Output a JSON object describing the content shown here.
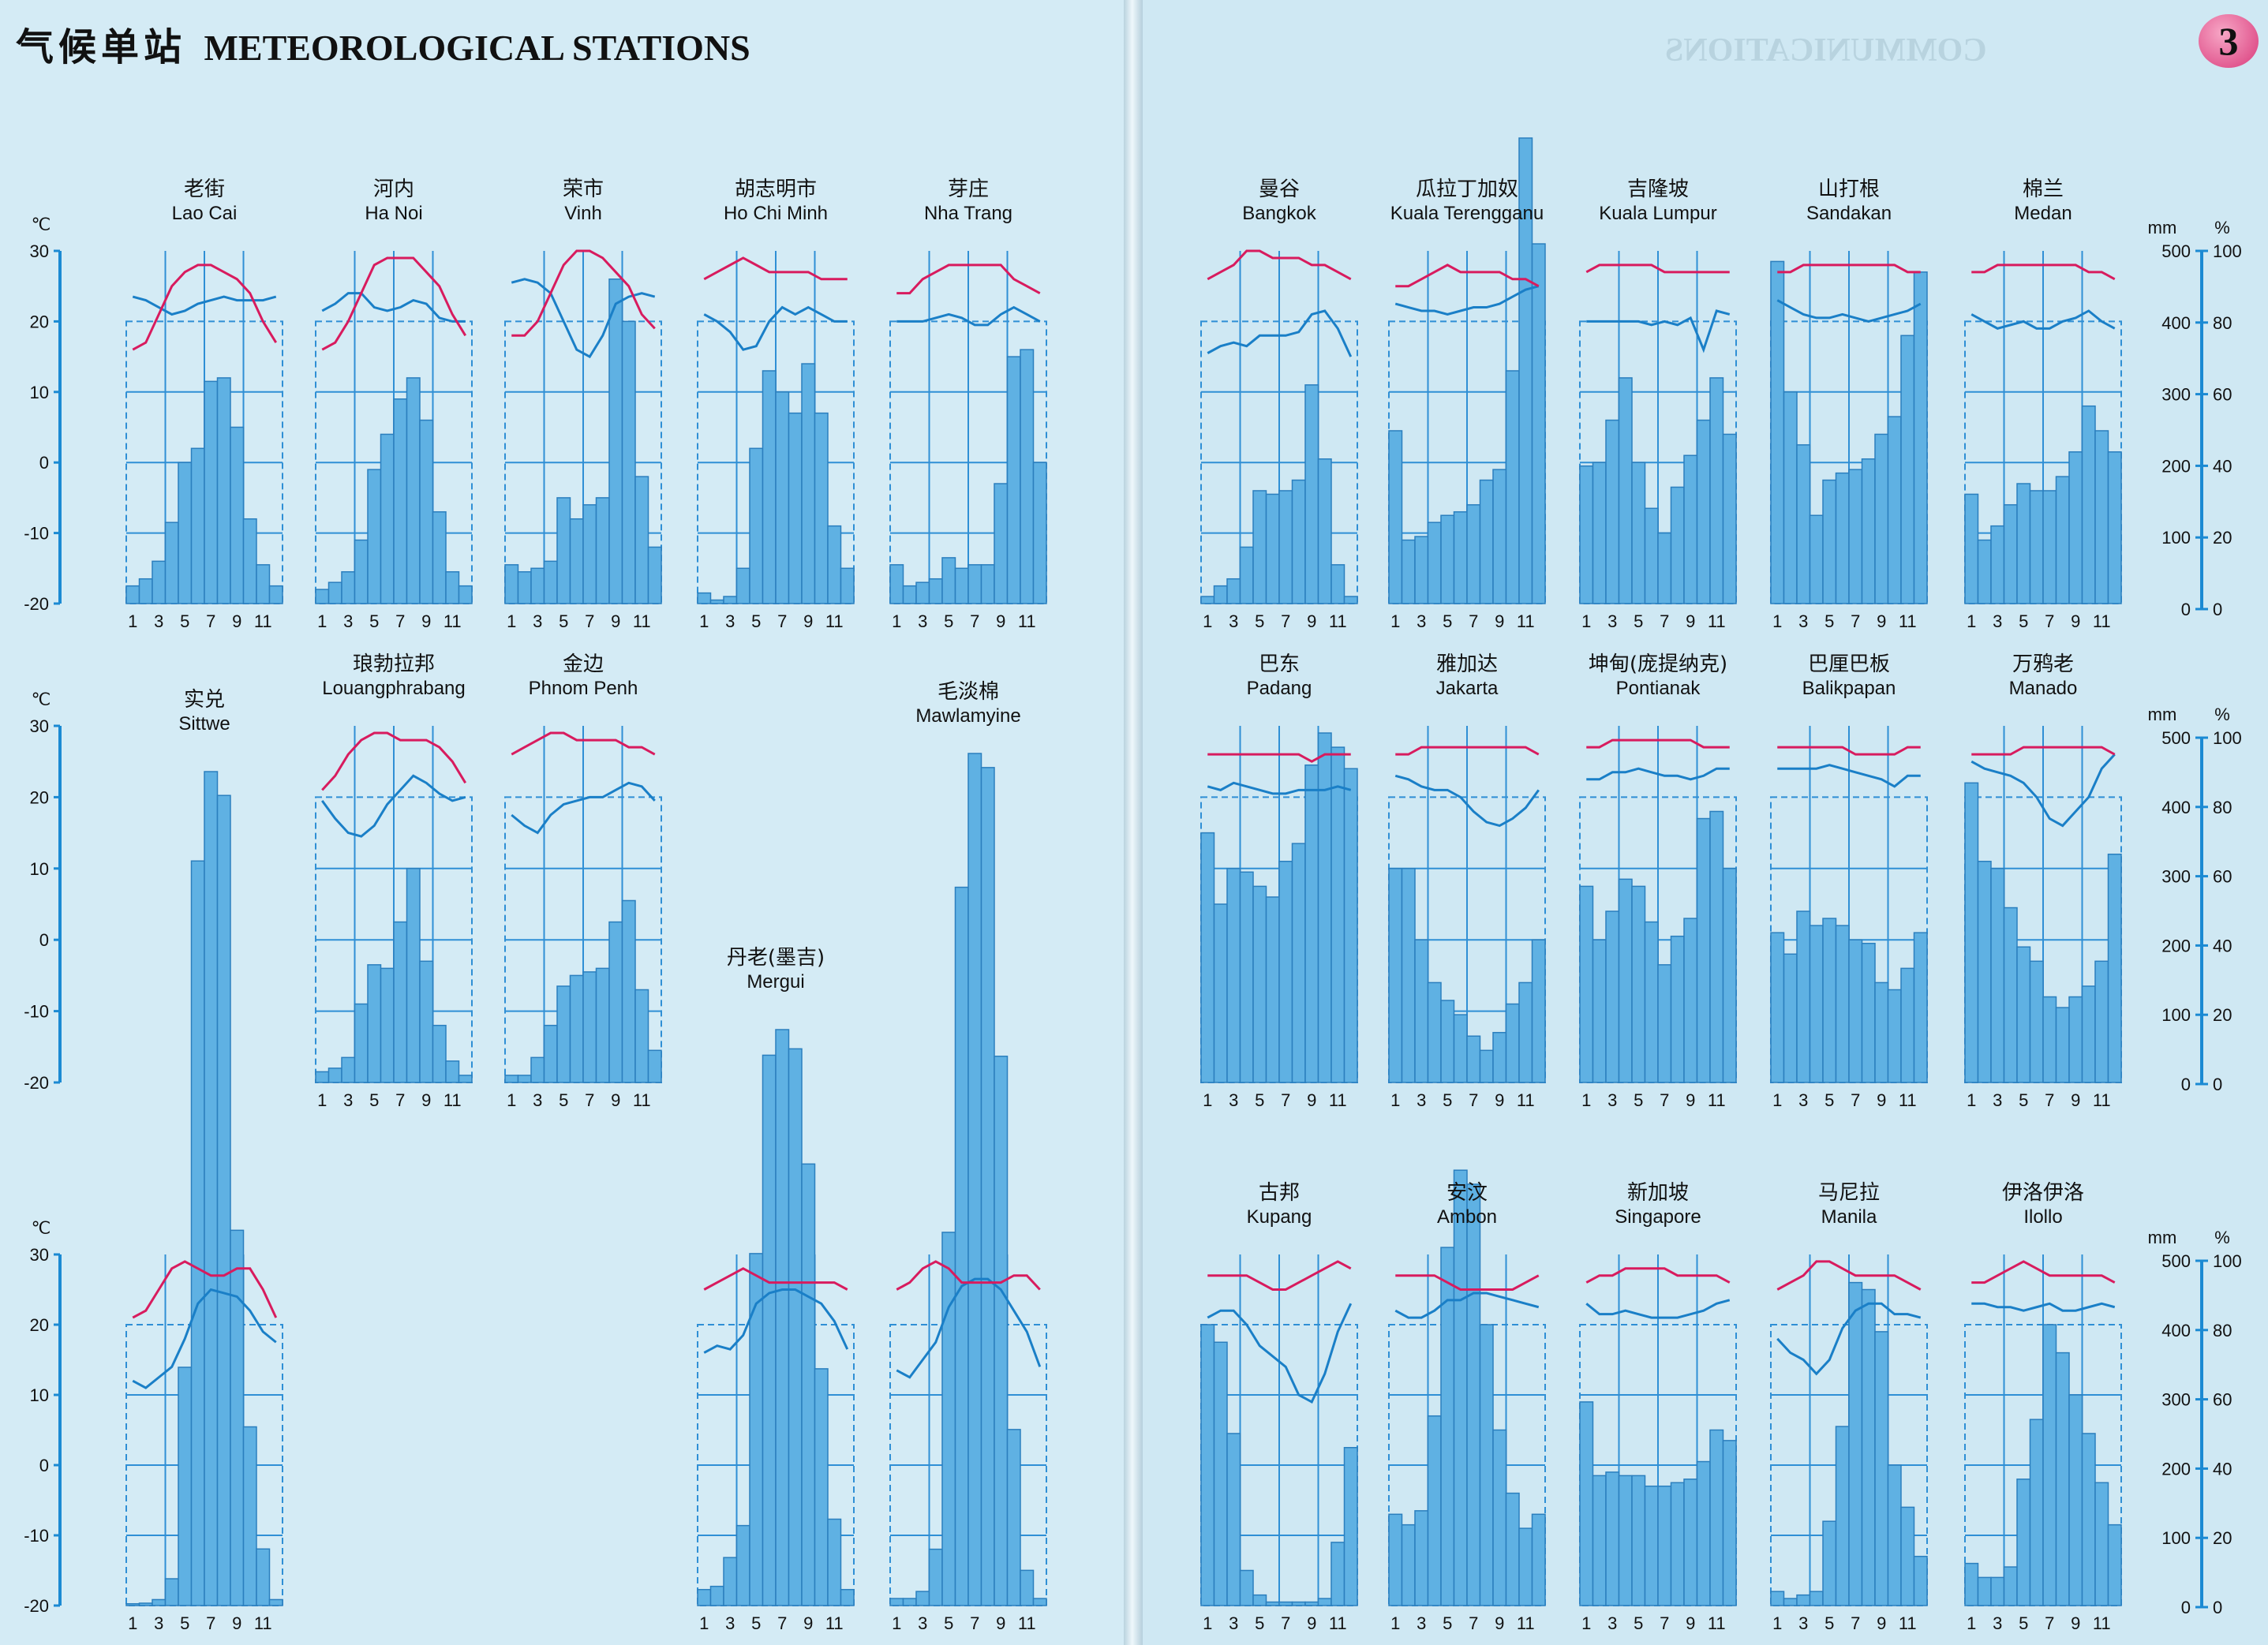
{
  "header": {
    "title_cn": "气候单站",
    "title_en": "METEOROLOGICAL STATIONS",
    "ghost_text": "COMMUNICATIONS",
    "page_number": "3"
  },
  "colors": {
    "temperature_line": "#d81b5e",
    "humidity_line": "#1a7fc7",
    "bars": "#5fb1e3",
    "bar_edge": "#2b7fbe",
    "grid": "#2f8fd5",
    "axis": "#1b8ad3"
  },
  "chart_data": {
    "type": "bar",
    "description_series": [
      "temperature_c",
      "relative_humidity_pct",
      "precipitation_mm"
    ],
    "left_axis": {
      "unit": "℃",
      "ticks": [
        "30",
        "20",
        "10",
        "0",
        "-10",
        "-20"
      ],
      "range": [
        -20,
        30
      ]
    },
    "right_axis": {
      "unit_mm": "mm",
      "unit_pct": "%",
      "mm_ticks": [
        "500",
        "400",
        "300",
        "200",
        "100",
        "0"
      ],
      "pct_ticks": [
        "100",
        "80",
        "60",
        "40",
        "20",
        "0"
      ],
      "mm_range": [
        0,
        500
      ],
      "pct_range": [
        0,
        100
      ]
    },
    "month_ticks": [
      "1",
      "3",
      "5",
      "7",
      "9",
      "11"
    ],
    "stations": [
      {
        "cn": "老街",
        "en": "Lao Cai",
        "temp": [
          16,
          17,
          21,
          25,
          27,
          28,
          28,
          27,
          26,
          24,
          20,
          17
        ],
        "humidity": [
          87,
          86,
          84,
          82,
          83,
          85,
          86,
          87,
          86,
          86,
          86,
          87
        ],
        "precip": [
          25,
          35,
          60,
          115,
          200,
          220,
          315,
          320,
          250,
          120,
          55,
          25
        ]
      },
      {
        "cn": "河内",
        "en": "Ha Noi",
        "temp": [
          16,
          17,
          20,
          24,
          28,
          29,
          29,
          29,
          27,
          25,
          21,
          18
        ],
        "humidity": [
          83,
          85,
          88,
          88,
          84,
          83,
          84,
          86,
          85,
          81,
          80,
          80
        ],
        "precip": [
          20,
          30,
          45,
          90,
          190,
          240,
          290,
          320,
          260,
          130,
          45,
          25
        ]
      },
      {
        "cn": "荣市",
        "en": "Vinh",
        "temp": [
          18,
          18,
          20,
          24,
          28,
          30,
          30,
          29,
          27,
          25,
          21,
          19
        ],
        "humidity": [
          91,
          92,
          91,
          88,
          80,
          72,
          70,
          76,
          85,
          87,
          88,
          87
        ],
        "precip": [
          55,
          45,
          50,
          60,
          150,
          120,
          140,
          150,
          460,
          400,
          180,
          80
        ]
      },
      {
        "cn": "胡志明市",
        "en": "Ho Chi Minh",
        "temp": [
          26,
          27,
          28,
          29,
          28,
          27,
          27,
          27,
          27,
          26,
          26,
          26
        ],
        "humidity": [
          82,
          80,
          77,
          72,
          73,
          80,
          84,
          82,
          84,
          82,
          80,
          80
        ],
        "precip": [
          15,
          5,
          10,
          50,
          220,
          330,
          300,
          270,
          340,
          270,
          110,
          50
        ]
      },
      {
        "cn": "芽庄",
        "en": "Nha Trang",
        "temp": [
          24,
          24,
          26,
          27,
          28,
          28,
          28,
          28,
          28,
          26,
          25,
          24
        ],
        "humidity": [
          80,
          80,
          80,
          81,
          82,
          81,
          79,
          79,
          82,
          84,
          82,
          80
        ],
        "precip": [
          55,
          25,
          30,
          35,
          65,
          50,
          55,
          55,
          170,
          350,
          360,
          200
        ]
      },
      {
        "cn": "曼谷",
        "en": "Bangkok",
        "temp": [
          26,
          27,
          28,
          30,
          30,
          29,
          29,
          29,
          28,
          28,
          27,
          26
        ],
        "humidity": [
          71,
          73,
          74,
          73,
          76,
          76,
          76,
          77,
          82,
          83,
          78,
          70
        ],
        "precip": [
          10,
          25,
          35,
          80,
          160,
          155,
          160,
          175,
          310,
          205,
          55,
          10
        ]
      },
      {
        "cn": "瓜拉丁加奴",
        "en": "Kuala Terengganu",
        "temp": [
          25,
          25,
          26,
          27,
          28,
          27,
          27,
          27,
          27,
          26,
          26,
          25
        ],
        "humidity": [
          85,
          84,
          83,
          83,
          82,
          83,
          84,
          84,
          85,
          87,
          89,
          90
        ],
        "precip": [
          245,
          90,
          95,
          115,
          125,
          130,
          140,
          175,
          190,
          330,
          660,
          510
        ]
      },
      {
        "cn": "吉隆坡",
        "en": "Kuala Lumpur",
        "temp": [
          27,
          28,
          28,
          28,
          28,
          28,
          27,
          27,
          27,
          27,
          27,
          27
        ],
        "humidity": [
          80,
          80,
          80,
          80,
          80,
          79,
          80,
          79,
          81,
          72,
          83,
          82
        ],
        "precip": [
          195,
          200,
          260,
          320,
          200,
          135,
          100,
          165,
          210,
          260,
          320,
          240
        ]
      },
      {
        "cn": "山打根",
        "en": "Sandakan",
        "temp": [
          27,
          27,
          28,
          28,
          28,
          28,
          28,
          28,
          28,
          28,
          27,
          27
        ],
        "humidity": [
          86,
          84,
          82,
          81,
          81,
          82,
          81,
          80,
          81,
          82,
          83,
          85
        ],
        "precip": [
          485,
          300,
          225,
          125,
          175,
          185,
          190,
          205,
          240,
          265,
          380,
          470
        ]
      },
      {
        "cn": "棉兰",
        "en": "Medan",
        "temp": [
          27,
          27,
          28,
          28,
          28,
          28,
          28,
          28,
          28,
          27,
          27,
          26
        ],
        "humidity": [
          82,
          80,
          78,
          79,
          80,
          78,
          78,
          80,
          81,
          83,
          80,
          78
        ],
        "precip": [
          155,
          90,
          110,
          140,
          170,
          160,
          160,
          180,
          215,
          280,
          245,
          215
        ]
      },
      {
        "cn": "实兑",
        "en": "Sittwe",
        "temp": [
          21,
          22,
          25,
          28,
          29,
          28,
          27,
          27,
          28,
          28,
          25,
          21
        ],
        "humidity": [
          64,
          62,
          65,
          68,
          76,
          86,
          90,
          89,
          88,
          84,
          78,
          75
        ],
        "precip": [
          3,
          4,
          10,
          45,
          400,
          1250,
          1400,
          1360,
          630,
          300,
          95,
          10
        ]
      },
      {
        "cn": "琅勃拉邦",
        "en": "Louangphrabang",
        "temp": [
          21,
          23,
          26,
          28,
          29,
          29,
          28,
          28,
          28,
          27,
          25,
          22
        ],
        "humidity": [
          79,
          74,
          70,
          69,
          72,
          78,
          82,
          86,
          84,
          81,
          79,
          80
        ],
        "precip": [
          15,
          20,
          35,
          110,
          165,
          160,
          225,
          300,
          170,
          80,
          30,
          10
        ]
      },
      {
        "cn": "金边",
        "en": "Phnom Penh",
        "temp": [
          26,
          27,
          28,
          29,
          29,
          28,
          28,
          28,
          28,
          27,
          27,
          26
        ],
        "humidity": [
          75,
          72,
          70,
          75,
          78,
          79,
          80,
          80,
          82,
          84,
          83,
          79
        ],
        "precip": [
          10,
          10,
          35,
          80,
          135,
          150,
          155,
          160,
          225,
          255,
          130,
          45
        ]
      },
      {
        "cn": "丹老(墨吉)",
        "en": "Mergui",
        "temp": [
          25,
          26,
          27,
          28,
          27,
          26,
          26,
          26,
          26,
          26,
          26,
          25
        ],
        "humidity": [
          72,
          74,
          73,
          77,
          86,
          89,
          90,
          90,
          88,
          86,
          81,
          73
        ],
        "precip": [
          25,
          30,
          75,
          125,
          550,
          860,
          900,
          870,
          690,
          370,
          135,
          25
        ]
      },
      {
        "cn": "毛淡棉",
        "en": "Mawlamyine",
        "temp": [
          25,
          26,
          28,
          29,
          28,
          26,
          26,
          26,
          26,
          27,
          27,
          25
        ],
        "humidity": [
          67,
          65,
          70,
          75,
          85,
          91,
          93,
          93,
          90,
          84,
          78,
          68
        ],
        "precip": [
          10,
          10,
          20,
          80,
          530,
          1020,
          1210,
          1190,
          780,
          250,
          50,
          10
        ]
      },
      {
        "cn": "巴东",
        "en": "Padang",
        "temp": [
          26,
          26,
          26,
          26,
          26,
          26,
          26,
          26,
          25,
          26,
          26,
          26
        ],
        "humidity": [
          83,
          82,
          84,
          83,
          82,
          81,
          81,
          82,
          82,
          82,
          83,
          82
        ],
        "precip": [
          350,
          250,
          300,
          295,
          275,
          260,
          310,
          335,
          445,
          490,
          470,
          440
        ]
      },
      {
        "cn": "雅加达",
        "en": "Jakarta",
        "temp": [
          26,
          26,
          27,
          27,
          27,
          27,
          27,
          27,
          27,
          27,
          27,
          26
        ],
        "humidity": [
          86,
          85,
          83,
          82,
          82,
          80,
          76,
          73,
          72,
          74,
          77,
          82
        ],
        "precip": [
          300,
          300,
          200,
          140,
          115,
          95,
          65,
          45,
          70,
          110,
          140,
          200
        ]
      },
      {
        "cn": "坤甸(庞提纳克)",
        "en": "Pontianak",
        "temp": [
          27,
          27,
          28,
          28,
          28,
          28,
          28,
          28,
          28,
          27,
          27,
          27
        ],
        "humidity": [
          85,
          85,
          87,
          87,
          88,
          87,
          86,
          86,
          85,
          86,
          88,
          88
        ],
        "precip": [
          275,
          200,
          240,
          285,
          275,
          225,
          165,
          205,
          230,
          370,
          380,
          300
        ]
      },
      {
        "cn": "巴厘巴板",
        "en": "Balikpapan",
        "temp": [
          27,
          27,
          27,
          27,
          27,
          27,
          26,
          26,
          26,
          26,
          27,
          27
        ],
        "humidity": [
          88,
          88,
          88,
          88,
          89,
          88,
          87,
          86,
          85,
          83,
          86,
          86
        ],
        "precip": [
          210,
          180,
          240,
          220,
          230,
          220,
          200,
          195,
          140,
          130,
          160,
          210
        ]
      },
      {
        "cn": "万鸦老",
        "en": "Manado",
        "temp": [
          26,
          26,
          26,
          26,
          27,
          27,
          27,
          27,
          27,
          27,
          27,
          26
        ],
        "humidity": [
          90,
          88,
          87,
          86,
          84,
          80,
          74,
          72,
          76,
          80,
          88,
          92
        ],
        "precip": [
          420,
          310,
          300,
          245,
          190,
          170,
          120,
          105,
          120,
          135,
          170,
          320
        ]
      },
      {
        "cn": "古邦",
        "en": "Kupang",
        "temp": [
          27,
          27,
          27,
          27,
          26,
          25,
          25,
          26,
          27,
          28,
          29,
          28
        ],
        "humidity": [
          82,
          84,
          84,
          80,
          74,
          71,
          68,
          60,
          58,
          66,
          78,
          86
        ],
        "precip": [
          400,
          375,
          245,
          50,
          15,
          5,
          5,
          5,
          5,
          10,
          90,
          225
        ]
      },
      {
        "cn": "安汶",
        "en": "Ambon",
        "temp": [
          27,
          27,
          27,
          27,
          26,
          25,
          25,
          25,
          25,
          25,
          26,
          27
        ],
        "humidity": [
          84,
          82,
          82,
          84,
          87,
          87,
          89,
          89,
          88,
          87,
          86,
          85
        ],
        "precip": [
          130,
          115,
          135,
          270,
          510,
          620,
          600,
          400,
          250,
          160,
          110,
          130
        ]
      },
      {
        "cn": "新加坡",
        "en": "Singapore",
        "temp": [
          26,
          27,
          27,
          28,
          28,
          28,
          28,
          27,
          27,
          27,
          27,
          26
        ],
        "humidity": [
          86,
          83,
          83,
          84,
          83,
          82,
          82,
          82,
          83,
          84,
          86,
          87
        ],
        "precip": [
          290,
          185,
          190,
          185,
          185,
          170,
          170,
          175,
          180,
          205,
          250,
          235
        ]
      },
      {
        "cn": "马尼拉",
        "en": "Manila",
        "temp": [
          25,
          26,
          27,
          29,
          29,
          28,
          27,
          27,
          27,
          27,
          26,
          25
        ],
        "humidity": [
          76,
          72,
          70,
          66,
          70,
          79,
          84,
          86,
          86,
          83,
          83,
          82
        ],
        "precip": [
          20,
          10,
          15,
          20,
          120,
          255,
          460,
          450,
          390,
          200,
          140,
          70
        ]
      },
      {
        "cn": "伊洛伊洛",
        "en": "Ilollo",
        "temp": [
          26,
          26,
          27,
          28,
          29,
          28,
          27,
          27,
          27,
          27,
          27,
          26
        ],
        "humidity": [
          86,
          86,
          85,
          85,
          84,
          85,
          86,
          84,
          84,
          85,
          86,
          85
        ],
        "precip": [
          60,
          40,
          40,
          55,
          180,
          265,
          400,
          360,
          300,
          245,
          175,
          115
        ]
      }
    ]
  }
}
